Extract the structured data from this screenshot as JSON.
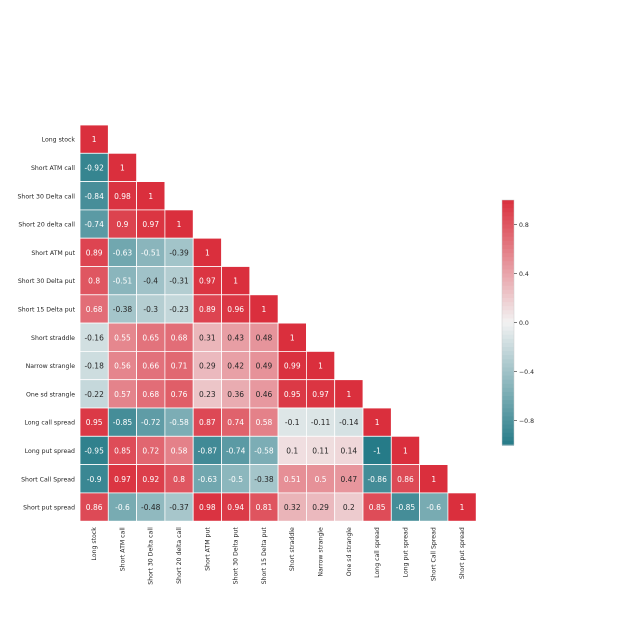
{
  "chart_data": {
    "type": "heatmap",
    "title": "",
    "xlabel": "",
    "ylabel": "",
    "labels": [
      "Long stock",
      "Short ATM call",
      "Short 30 Delta call",
      "Short 20 delta call",
      "Short ATM put",
      "Short 30 Delta put",
      "Short 15 Delta put",
      "Short straddle",
      "Narrow strangle",
      "One sd strangle",
      "Long call spread",
      "Long put spread",
      "Short Call Spread",
      "Short put spread"
    ],
    "matrix": [
      [
        1
      ],
      [
        -0.92,
        1
      ],
      [
        -0.84,
        0.98,
        1
      ],
      [
        -0.74,
        0.9,
        0.97,
        1
      ],
      [
        0.89,
        -0.63,
        -0.51,
        -0.39,
        1
      ],
      [
        0.8,
        -0.51,
        -0.4,
        -0.31,
        0.97,
        1
      ],
      [
        0.68,
        -0.38,
        -0.3,
        -0.23,
        0.89,
        0.96,
        1
      ],
      [
        -0.16,
        0.55,
        0.65,
        0.68,
        0.31,
        0.43,
        0.48,
        1
      ],
      [
        -0.18,
        0.56,
        0.66,
        0.71,
        0.29,
        0.42,
        0.49,
        0.99,
        1
      ],
      [
        -0.22,
        0.57,
        0.68,
        0.76,
        0.23,
        0.36,
        0.46,
        0.95,
        0.97,
        1
      ],
      [
        0.95,
        -0.85,
        -0.72,
        -0.58,
        0.87,
        0.74,
        0.58,
        -0.1,
        -0.11,
        -0.14,
        1
      ],
      [
        -0.95,
        0.85,
        0.72,
        0.58,
        -0.87,
        -0.74,
        -0.58,
        0.1,
        0.11,
        0.14,
        -1,
        1
      ],
      [
        -0.9,
        0.97,
        0.92,
        0.8,
        -0.63,
        -0.5,
        -0.38,
        0.51,
        0.5,
        0.47,
        -0.86,
        0.86,
        1
      ],
      [
        0.86,
        -0.6,
        -0.48,
        -0.37,
        0.98,
        0.94,
        0.81,
        0.32,
        0.29,
        0.2,
        0.85,
        -0.85,
        -0.6,
        1
      ]
    ],
    "value_labels": [
      [
        "1"
      ],
      [
        "-0.92",
        "1"
      ],
      [
        "-0.84",
        "0.98",
        "1"
      ],
      [
        "-0.74",
        "0.9",
        "0.97",
        "1"
      ],
      [
        "0.89",
        "-0.63",
        "-0.51",
        "-0.39",
        "1"
      ],
      [
        "0.8",
        "-0.51",
        "-0.4",
        "-0.31",
        "0.97",
        "1"
      ],
      [
        "0.68",
        "-0.38",
        "-0.3",
        "-0.23",
        "0.89",
        "0.96",
        "1"
      ],
      [
        "-0.16",
        "0.55",
        "0.65",
        "0.68",
        "0.31",
        "0.43",
        "0.48",
        "1"
      ],
      [
        "-0.18",
        "0.56",
        "0.66",
        "0.71",
        "0.29",
        "0.42",
        "0.49",
        "0.99",
        "1"
      ],
      [
        "-0.22",
        "0.57",
        "0.68",
        "0.76",
        "0.23",
        "0.36",
        "0.46",
        "0.95",
        "0.97",
        "1"
      ],
      [
        "0.95",
        "-0.85",
        "-0.72",
        "-0.58",
        "0.87",
        "0.74",
        "0.58",
        "-0.1",
        "-0.11",
        "-0.14",
        "1"
      ],
      [
        "-0.95",
        "0.85",
        "0.72",
        "0.58",
        "-0.87",
        "-0.74",
        "-0.58",
        "0.1",
        "0.11",
        "0.14",
        "-1",
        "1"
      ],
      [
        "-0.9",
        "0.97",
        "0.92",
        "0.8",
        "-0.63",
        "-0.5",
        "-0.38",
        "0.51",
        "0.5",
        "0.47",
        "-0.86",
        "0.86",
        "1"
      ],
      [
        "0.86",
        "-0.6",
        "-0.48",
        "-0.37",
        "0.98",
        "0.94",
        "0.81",
        "0.32",
        "0.29",
        "0.2",
        "0.85",
        "-0.85",
        "-0.6",
        "1"
      ]
    ],
    "vmin": -1,
    "vmax": 1,
    "colorbar": {
      "ticks": [
        0.8,
        0.4,
        0.0,
        -0.4,
        -0.8
      ],
      "tick_labels": [
        "0.8",
        "0.4",
        "0.0",
        "−0.4",
        "−0.8"
      ]
    },
    "colors": {
      "negative": "#267b88",
      "center": "#f2f2f2",
      "positive": "#da2f3d",
      "text_dark": "#262626",
      "text_light": "#ffffff"
    },
    "grid": false,
    "masked": "upper-triangle"
  }
}
